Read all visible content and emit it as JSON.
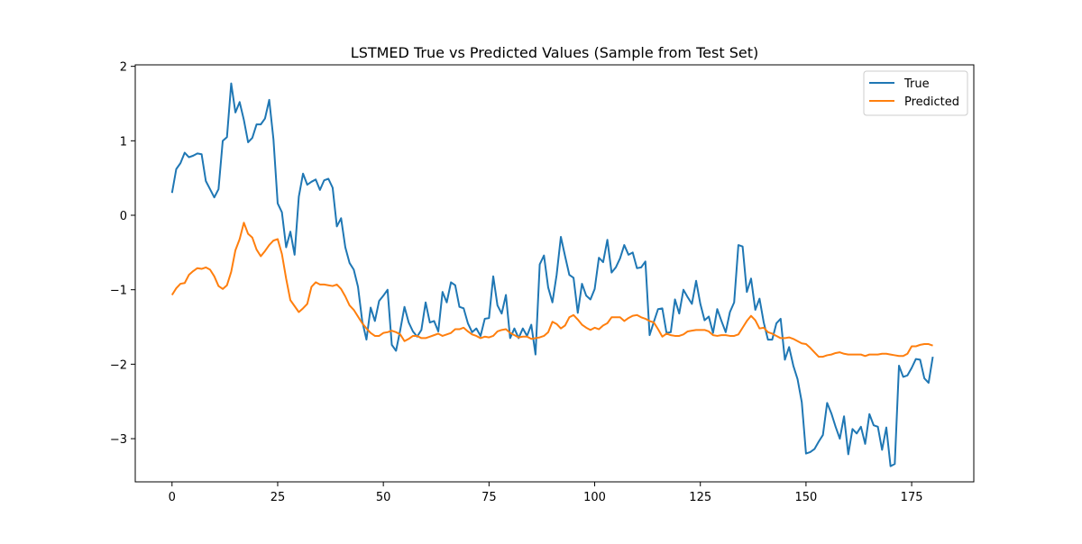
{
  "chart_data": {
    "type": "line",
    "title": "LSTMED True vs Predicted Values (Sample from Test Set)",
    "xlabel": "",
    "ylabel": "",
    "xlim": [
      -8.7,
      189.7
    ],
    "ylim": [
      -3.58,
      2.02
    ],
    "xticks": [
      0,
      25,
      50,
      75,
      100,
      125,
      150,
      175
    ],
    "yticks": [
      -3,
      -2,
      -1,
      0,
      1,
      2
    ],
    "grid": false,
    "legend_placement": "top-right",
    "series": [
      {
        "name": "True",
        "color": "#1f77b4",
        "x_start": 0,
        "x_step": 1,
        "values": [
          0.3,
          0.62,
          0.7,
          0.84,
          0.78,
          0.8,
          0.83,
          0.82,
          0.46,
          0.35,
          0.24,
          0.35,
          1.0,
          1.05,
          1.77,
          1.38,
          1.52,
          1.28,
          0.98,
          1.04,
          1.22,
          1.22,
          1.3,
          1.55,
          1.02,
          0.16,
          0.04,
          -0.43,
          -0.22,
          -0.53,
          0.25,
          0.56,
          0.41,
          0.45,
          0.48,
          0.34,
          0.47,
          0.49,
          0.37,
          -0.15,
          -0.04,
          -0.43,
          -0.64,
          -0.73,
          -0.96,
          -1.42,
          -1.67,
          -1.24,
          -1.42,
          -1.15,
          -1.08,
          -1.0,
          -1.74,
          -1.82,
          -1.54,
          -1.23,
          -1.44,
          -1.56,
          -1.63,
          -1.54,
          -1.17,
          -1.44,
          -1.42,
          -1.56,
          -1.03,
          -1.17,
          -0.9,
          -0.94,
          -1.23,
          -1.25,
          -1.45,
          -1.57,
          -1.52,
          -1.62,
          -1.39,
          -1.38,
          -0.82,
          -1.21,
          -1.32,
          -1.07,
          -1.65,
          -1.52,
          -1.65,
          -1.52,
          -1.62,
          -1.47,
          -1.87,
          -0.66,
          -0.54,
          -0.97,
          -1.17,
          -0.8,
          -0.29,
          -0.55,
          -0.8,
          -0.84,
          -1.31,
          -0.92,
          -1.08,
          -1.13,
          -0.99,
          -0.57,
          -0.63,
          -0.33,
          -0.77,
          -0.7,
          -0.58,
          -0.4,
          -0.53,
          -0.5,
          -0.71,
          -0.7,
          -0.62,
          -1.61,
          -1.43,
          -1.26,
          -1.25,
          -1.58,
          -1.57,
          -1.13,
          -1.32,
          -1.0,
          -1.1,
          -1.19,
          -0.88,
          -1.19,
          -1.41,
          -1.36,
          -1.58,
          -1.26,
          -1.42,
          -1.57,
          -1.3,
          -1.17,
          -0.4,
          -0.42,
          -1.03,
          -0.85,
          -1.27,
          -1.12,
          -1.44,
          -1.67,
          -1.67,
          -1.45,
          -1.39,
          -1.94,
          -1.77,
          -2.02,
          -2.2,
          -2.51,
          -3.2,
          -3.18,
          -3.14,
          -3.04,
          -2.95,
          -2.52,
          -2.66,
          -2.84,
          -3.0,
          -2.7,
          -3.21,
          -2.87,
          -2.93,
          -2.84,
          -3.07,
          -2.67,
          -2.82,
          -2.84,
          -3.15,
          -2.85,
          -3.37,
          -3.34,
          -2.02,
          -2.17,
          -2.15,
          -2.05,
          -1.93,
          -1.94,
          -2.19,
          -2.25,
          -1.9
        ]
      },
      {
        "name": "Predicted",
        "color": "#ff7f0e",
        "x_start": 0,
        "x_step": 1,
        "values": [
          -1.07,
          -0.98,
          -0.92,
          -0.91,
          -0.8,
          -0.75,
          -0.71,
          -0.72,
          -0.7,
          -0.73,
          -0.82,
          -0.95,
          -0.99,
          -0.94,
          -0.76,
          -0.47,
          -0.32,
          -0.1,
          -0.25,
          -0.3,
          -0.46,
          -0.55,
          -0.48,
          -0.4,
          -0.34,
          -0.32,
          -0.52,
          -0.85,
          -1.14,
          -1.22,
          -1.3,
          -1.25,
          -1.19,
          -0.96,
          -0.9,
          -0.93,
          -0.93,
          -0.94,
          -0.95,
          -0.93,
          -0.99,
          -1.09,
          -1.21,
          -1.27,
          -1.36,
          -1.45,
          -1.52,
          -1.58,
          -1.62,
          -1.62,
          -1.58,
          -1.57,
          -1.55,
          -1.57,
          -1.6,
          -1.69,
          -1.66,
          -1.62,
          -1.62,
          -1.65,
          -1.65,
          -1.63,
          -1.61,
          -1.59,
          -1.62,
          -1.6,
          -1.58,
          -1.53,
          -1.53,
          -1.51,
          -1.56,
          -1.6,
          -1.62,
          -1.65,
          -1.63,
          -1.64,
          -1.62,
          -1.56,
          -1.54,
          -1.53,
          -1.58,
          -1.61,
          -1.64,
          -1.63,
          -1.63,
          -1.66,
          -1.65,
          -1.64,
          -1.62,
          -1.57,
          -1.43,
          -1.46,
          -1.52,
          -1.48,
          -1.37,
          -1.34,
          -1.4,
          -1.47,
          -1.51,
          -1.54,
          -1.51,
          -1.53,
          -1.48,
          -1.45,
          -1.37,
          -1.37,
          -1.37,
          -1.42,
          -1.38,
          -1.35,
          -1.34,
          -1.37,
          -1.39,
          -1.42,
          -1.44,
          -1.53,
          -1.63,
          -1.59,
          -1.61,
          -1.62,
          -1.62,
          -1.6,
          -1.56,
          -1.55,
          -1.54,
          -1.54,
          -1.54,
          -1.56,
          -1.61,
          -1.62,
          -1.61,
          -1.61,
          -1.62,
          -1.62,
          -1.6,
          -1.51,
          -1.42,
          -1.35,
          -1.41,
          -1.52,
          -1.51,
          -1.57,
          -1.59,
          -1.62,
          -1.65,
          -1.65,
          -1.64,
          -1.66,
          -1.69,
          -1.72,
          -1.73,
          -1.78,
          -1.84,
          -1.9,
          -1.9,
          -1.88,
          -1.87,
          -1.85,
          -1.84,
          -1.86,
          -1.87,
          -1.87,
          -1.87,
          -1.87,
          -1.89,
          -1.87,
          -1.87,
          -1.87,
          -1.86,
          -1.86,
          -1.87,
          -1.88,
          -1.89,
          -1.89,
          -1.86,
          -1.76,
          -1.76,
          -1.74,
          -1.73,
          -1.73,
          -1.75
        ]
      }
    ]
  }
}
